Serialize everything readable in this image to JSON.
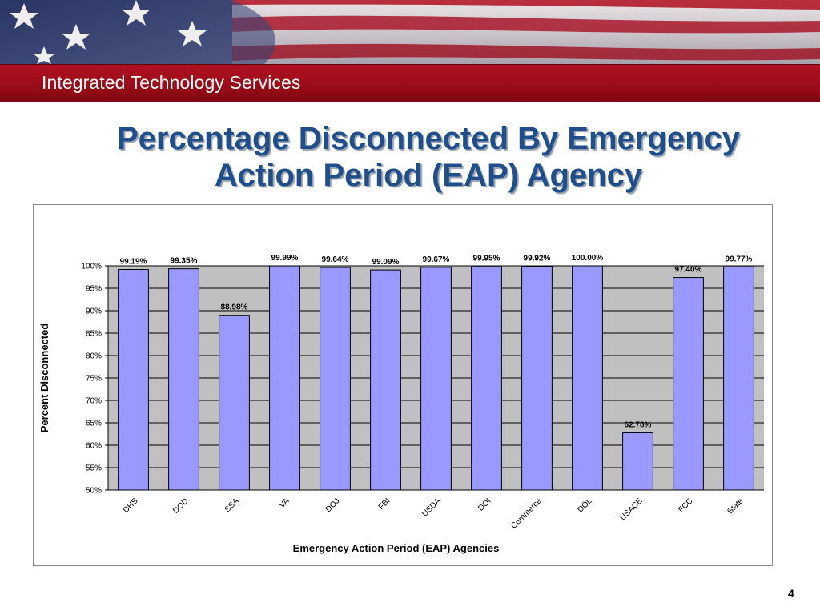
{
  "header": {
    "title": "Integrated Technology Services"
  },
  "slide": {
    "title_line1": "Percentage Disconnected By Emergency",
    "title_line2": "Action Period (EAP) Agency",
    "page_number": "4"
  },
  "colors": {
    "bar": "#9999ff",
    "plot_bg": "#c0c0c0",
    "header_red": "#9a0b18",
    "title_blue": "#1f4e8c"
  },
  "chart_data": {
    "type": "bar",
    "categories": [
      "DHS",
      "DOD",
      "SSA",
      "VA",
      "DOJ",
      "FBI",
      "USDA",
      "DOI",
      "Commerce",
      "DOL",
      "USACE",
      "FCC",
      "State"
    ],
    "values": [
      99.19,
      99.35,
      88.98,
      99.99,
      99.64,
      99.09,
      99.67,
      99.95,
      99.92,
      100.0,
      62.78,
      97.4,
      99.77
    ],
    "data_labels": [
      "99.19%",
      "99.35%",
      "88.98%",
      "99.99%",
      "99.64%",
      "99.09%",
      "99.67%",
      "99.95%",
      "99.92%",
      "100.00%",
      "62.78%",
      "97.40%",
      "99.77%"
    ],
    "yticks": [
      "50%",
      "55%",
      "60%",
      "65%",
      "70%",
      "75%",
      "80%",
      "85%",
      "90%",
      "95%",
      "100%"
    ],
    "ylim": [
      50,
      100
    ],
    "xlabel": "Emergency Action Period (EAP) Agencies",
    "ylabel": "Percent Disconnected",
    "grid": true,
    "legend": "none"
  }
}
